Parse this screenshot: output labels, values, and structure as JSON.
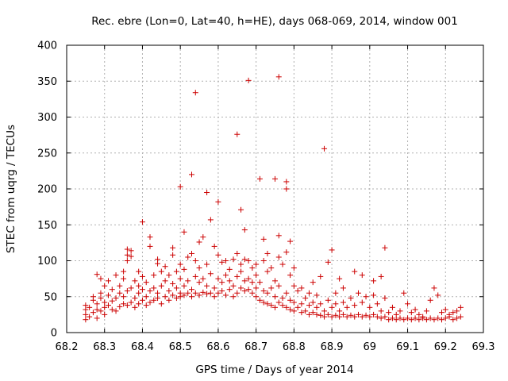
{
  "chart_data": {
    "type": "scatter",
    "title": "Rec. ebre (Lon=0, Lat=40, h=HE), days 068-069, 2014, window 001",
    "xlabel": "GPS time / Days of year 2014",
    "ylabel": "STEC from uqrg / TECUs",
    "xlim": [
      68.2,
      69.3
    ],
    "ylim": [
      0,
      400
    ],
    "xticks": [
      "68.2",
      "68.3",
      "68.4",
      "68.5",
      "68.6",
      "68.7",
      "68.8",
      "68.9",
      "69",
      "69.1",
      "69.2",
      "69.3"
    ],
    "yticks": [
      "0",
      "50",
      "100",
      "150",
      "200",
      "250",
      "300",
      "350",
      "400"
    ],
    "grid": true,
    "marker": "+",
    "color": "#cc0000",
    "series": [
      {
        "name": "STEC",
        "points": [
          [
            68.25,
            18
          ],
          [
            68.25,
            25
          ],
          [
            68.25,
            32
          ],
          [
            68.25,
            38
          ],
          [
            68.26,
            22
          ],
          [
            68.26,
            35
          ],
          [
            68.27,
            28
          ],
          [
            68.27,
            50
          ],
          [
            68.27,
            45
          ],
          [
            68.28,
            20
          ],
          [
            68.28,
            32
          ],
          [
            68.28,
            40
          ],
          [
            68.28,
            81
          ],
          [
            68.29,
            30
          ],
          [
            68.29,
            48
          ],
          [
            68.29,
            55
          ],
          [
            68.29,
            75
          ],
          [
            68.3,
            25
          ],
          [
            68.3,
            35
          ],
          [
            68.3,
            42
          ],
          [
            68.3,
            65
          ],
          [
            68.31,
            38
          ],
          [
            68.31,
            52
          ],
          [
            68.31,
            72
          ],
          [
            68.32,
            32
          ],
          [
            68.32,
            44
          ],
          [
            68.32,
            60
          ],
          [
            68.33,
            30
          ],
          [
            68.33,
            48
          ],
          [
            68.33,
            80
          ],
          [
            68.34,
            36
          ],
          [
            68.34,
            55
          ],
          [
            68.34,
            65
          ],
          [
            68.35,
            40
          ],
          [
            68.35,
            50
          ],
          [
            68.35,
            75
          ],
          [
            68.35,
            85
          ],
          [
            68.36,
            38
          ],
          [
            68.36,
            58
          ],
          [
            68.36,
            100
          ],
          [
            68.36,
            108
          ],
          [
            68.36,
            116
          ],
          [
            68.37,
            42
          ],
          [
            68.37,
            62
          ],
          [
            68.37,
            106
          ],
          [
            68.37,
            114
          ],
          [
            68.38,
            35
          ],
          [
            68.38,
            48
          ],
          [
            68.38,
            72
          ],
          [
            68.39,
            40
          ],
          [
            68.39,
            55
          ],
          [
            68.39,
            85
          ],
          [
            68.39,
            65
          ],
          [
            68.4,
            45
          ],
          [
            68.4,
            60
          ],
          [
            68.4,
            78
          ],
          [
            68.4,
            154
          ],
          [
            68.41,
            38
          ],
          [
            68.41,
            50
          ],
          [
            68.41,
            70
          ],
          [
            68.42,
            42
          ],
          [
            68.42,
            58
          ],
          [
            68.42,
            120
          ],
          [
            68.42,
            133
          ],
          [
            68.43,
            45
          ],
          [
            68.43,
            62
          ],
          [
            68.43,
            80
          ],
          [
            68.44,
            48
          ],
          [
            68.44,
            55
          ],
          [
            68.44,
            96
          ],
          [
            68.44,
            102
          ],
          [
            68.45,
            40
          ],
          [
            68.45,
            65
          ],
          [
            68.45,
            85
          ],
          [
            68.46,
            50
          ],
          [
            68.46,
            72
          ],
          [
            68.46,
            92
          ],
          [
            68.47,
            45
          ],
          [
            68.47,
            58
          ],
          [
            68.47,
            80
          ],
          [
            68.48,
            52
          ],
          [
            68.48,
            68
          ],
          [
            68.48,
            108
          ],
          [
            68.48,
            118
          ],
          [
            68.49,
            48
          ],
          [
            68.49,
            62
          ],
          [
            68.49,
            85
          ],
          [
            68.5,
            50
          ],
          [
            68.5,
            55
          ],
          [
            68.5,
            75
          ],
          [
            68.5,
            95
          ],
          [
            68.5,
            203
          ],
          [
            68.51,
            52
          ],
          [
            68.51,
            65
          ],
          [
            68.51,
            140
          ],
          [
            68.51,
            88
          ],
          [
            68.52,
            55
          ],
          [
            68.52,
            72
          ],
          [
            68.52,
            105
          ],
          [
            68.53,
            50
          ],
          [
            68.53,
            60
          ],
          [
            68.53,
            110
          ],
          [
            68.53,
            220
          ],
          [
            68.54,
            55
          ],
          [
            68.54,
            78
          ],
          [
            68.54,
            100
          ],
          [
            68.54,
            334
          ],
          [
            68.55,
            52
          ],
          [
            68.55,
            70
          ],
          [
            68.55,
            90
          ],
          [
            68.55,
            126
          ],
          [
            68.56,
            56
          ],
          [
            68.56,
            75
          ],
          [
            68.56,
            133
          ],
          [
            68.57,
            54
          ],
          [
            68.57,
            65
          ],
          [
            68.57,
            95
          ],
          [
            68.57,
            195
          ],
          [
            68.58,
            55
          ],
          [
            68.58,
            82
          ],
          [
            68.58,
            157
          ],
          [
            68.59,
            50
          ],
          [
            68.59,
            62
          ],
          [
            68.59,
            120
          ],
          [
            68.6,
            55
          ],
          [
            68.6,
            75
          ],
          [
            68.6,
            108
          ],
          [
            68.6,
            182
          ],
          [
            68.61,
            58
          ],
          [
            68.61,
            70
          ],
          [
            68.61,
            98
          ],
          [
            68.62,
            52
          ],
          [
            68.62,
            80
          ],
          [
            68.62,
            100
          ],
          [
            68.63,
            60
          ],
          [
            68.63,
            72
          ],
          [
            68.63,
            88
          ],
          [
            68.64,
            50
          ],
          [
            68.64,
            65
          ],
          [
            68.64,
            102
          ],
          [
            68.65,
            55
          ],
          [
            68.65,
            78
          ],
          [
            68.65,
            110
          ],
          [
            68.65,
            276
          ],
          [
            68.66,
            62
          ],
          [
            68.66,
            85
          ],
          [
            68.66,
            95
          ],
          [
            68.66,
            171
          ],
          [
            68.67,
            58
          ],
          [
            68.67,
            72
          ],
          [
            68.67,
            143
          ],
          [
            68.67,
            102
          ],
          [
            68.68,
            60
          ],
          [
            68.68,
            75
          ],
          [
            68.68,
            100
          ],
          [
            68.68,
            351
          ],
          [
            68.69,
            55
          ],
          [
            68.69,
            70
          ],
          [
            68.69,
            90
          ],
          [
            68.7,
            50
          ],
          [
            68.7,
            62
          ],
          [
            68.7,
            80
          ],
          [
            68.7,
            95
          ],
          [
            68.71,
            45
          ],
          [
            68.71,
            70
          ],
          [
            68.71,
            214
          ],
          [
            68.72,
            42
          ],
          [
            68.72,
            58
          ],
          [
            68.72,
            130
          ],
          [
            68.72,
            100
          ],
          [
            68.73,
            40
          ],
          [
            68.73,
            55
          ],
          [
            68.73,
            85
          ],
          [
            68.73,
            110
          ],
          [
            68.74,
            38
          ],
          [
            68.74,
            62
          ],
          [
            68.74,
            90
          ],
          [
            68.75,
            35
          ],
          [
            68.75,
            50
          ],
          [
            68.75,
            72
          ],
          [
            68.75,
            214
          ],
          [
            68.76,
            42
          ],
          [
            68.76,
            65
          ],
          [
            68.76,
            105
          ],
          [
            68.76,
            135
          ],
          [
            68.76,
            356
          ],
          [
            68.77,
            38
          ],
          [
            68.77,
            48
          ],
          [
            68.77,
            95
          ],
          [
            68.78,
            35
          ],
          [
            68.78,
            55
          ],
          [
            68.78,
            112
          ],
          [
            68.78,
            200
          ],
          [
            68.78,
            210
          ],
          [
            68.79,
            32
          ],
          [
            68.79,
            45
          ],
          [
            68.79,
            80
          ],
          [
            68.79,
            127
          ],
          [
            68.8,
            30
          ],
          [
            68.8,
            42
          ],
          [
            68.8,
            65
          ],
          [
            68.8,
            90
          ],
          [
            68.81,
            35
          ],
          [
            68.81,
            58
          ],
          [
            68.82,
            28
          ],
          [
            68.82,
            40
          ],
          [
            68.82,
            62
          ],
          [
            68.83,
            30
          ],
          [
            68.83,
            48
          ],
          [
            68.84,
            25
          ],
          [
            68.84,
            38
          ],
          [
            68.84,
            55
          ],
          [
            68.85,
            28
          ],
          [
            68.85,
            42
          ],
          [
            68.85,
            70
          ],
          [
            68.86,
            25
          ],
          [
            68.86,
            35
          ],
          [
            68.86,
            52
          ],
          [
            68.87,
            24
          ],
          [
            68.87,
            40
          ],
          [
            68.87,
            78
          ],
          [
            68.88,
            22
          ],
          [
            68.88,
            30
          ],
          [
            68.88,
            256
          ],
          [
            68.89,
            25
          ],
          [
            68.89,
            45
          ],
          [
            68.89,
            98
          ],
          [
            68.9,
            22
          ],
          [
            68.9,
            35
          ],
          [
            68.9,
            115
          ],
          [
            68.91,
            24
          ],
          [
            68.91,
            40
          ],
          [
            68.91,
            55
          ],
          [
            68.92,
            22
          ],
          [
            68.92,
            30
          ],
          [
            68.92,
            75
          ],
          [
            68.93,
            25
          ],
          [
            68.93,
            42
          ],
          [
            68.93,
            62
          ],
          [
            68.94,
            22
          ],
          [
            68.94,
            35
          ],
          [
            68.95,
            24
          ],
          [
            68.95,
            48
          ],
          [
            68.96,
            22
          ],
          [
            68.96,
            38
          ],
          [
            68.96,
            85
          ],
          [
            68.97,
            25
          ],
          [
            68.97,
            55
          ],
          [
            68.98,
            22
          ],
          [
            68.98,
            42
          ],
          [
            68.98,
            80
          ],
          [
            68.99,
            24
          ],
          [
            68.99,
            50
          ],
          [
            69.0,
            22
          ],
          [
            69.0,
            35
          ],
          [
            69.01,
            25
          ],
          [
            69.01,
            52
          ],
          [
            69.01,
            72
          ],
          [
            69.02,
            22
          ],
          [
            69.02,
            40
          ],
          [
            69.03,
            20
          ],
          [
            69.03,
            30
          ],
          [
            69.03,
            78
          ],
          [
            69.04,
            22
          ],
          [
            69.04,
            118
          ],
          [
            69.04,
            48
          ],
          [
            69.05,
            18
          ],
          [
            69.05,
            28
          ],
          [
            69.06,
            20
          ],
          [
            69.06,
            35
          ],
          [
            69.07,
            18
          ],
          [
            69.07,
            25
          ],
          [
            69.08,
            20
          ],
          [
            69.08,
            30
          ],
          [
            69.09,
            18
          ],
          [
            69.09,
            55
          ],
          [
            69.1,
            20
          ],
          [
            69.1,
            40
          ],
          [
            69.11,
            18
          ],
          [
            69.11,
            28
          ],
          [
            69.12,
            20
          ],
          [
            69.12,
            32
          ],
          [
            69.13,
            18
          ],
          [
            69.13,
            25
          ],
          [
            69.14,
            20
          ],
          [
            69.14,
            22
          ],
          [
            69.15,
            18
          ],
          [
            69.15,
            30
          ],
          [
            69.16,
            20
          ],
          [
            69.16,
            45
          ],
          [
            69.17,
            18
          ],
          [
            69.17,
            62
          ],
          [
            69.18,
            20
          ],
          [
            69.18,
            52
          ],
          [
            69.19,
            18
          ],
          [
            69.19,
            28
          ],
          [
            69.2,
            20
          ],
          [
            69.2,
            32
          ],
          [
            69.21,
            22
          ],
          [
            69.21,
            25
          ],
          [
            69.22,
            18
          ],
          [
            69.22,
            28
          ],
          [
            69.23,
            20
          ],
          [
            69.23,
            30
          ],
          [
            69.24,
            22
          ],
          [
            69.24,
            35
          ]
        ]
      }
    ]
  }
}
